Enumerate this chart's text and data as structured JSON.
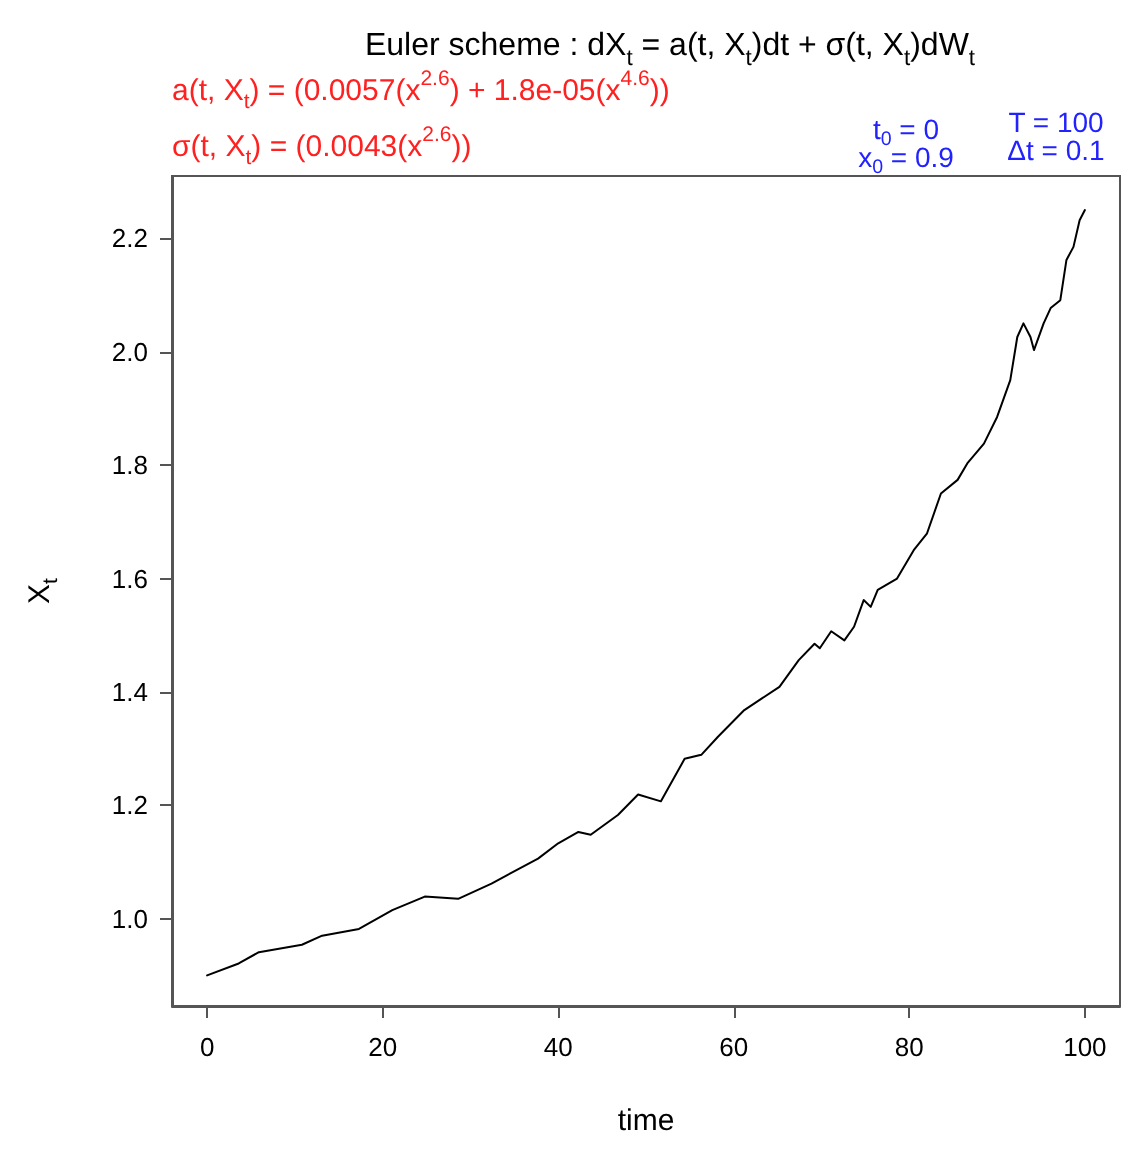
{
  "chart_data": {
    "type": "line",
    "title": "Euler scheme : dX$_{t}$ = a(t, X$_{t}$)dt + σ(t, X$_{t}$)dW$_{t}$",
    "xlabel": "time",
    "ylabel": "X$_{t}$",
    "annotations": [
      "a(t, X$_{t}$) = (0.0057(x$^{2.6}$) + 1.8e-05(x$^{4.6}$))",
      "σ(t, X$_{t}$) = (0.0043(x$^{2.6}$))",
      "t$_{0}$ = 0",
      "x$_{0}$ = 0.9",
      "T = 100",
      "Δt = 0.1"
    ],
    "series": [
      {
        "color": "#000000",
        "x": [
          0,
          3.6,
          5.9,
          10.8,
          13.1,
          17.3,
          21.1,
          24.8,
          28.6,
          32.4,
          37.7,
          40,
          42.3,
          43.7,
          46.8,
          49.1,
          51.7,
          54.4,
          56.3,
          58.2,
          61.2,
          65.2,
          67.4,
          69.2,
          69.8,
          71.1,
          72.6,
          73.7,
          74.8,
          75.6,
          76.4,
          78.6,
          80.5,
          82.0,
          83.6,
          85.5,
          86.6,
          88.5,
          90.0,
          91.5,
          92.3,
          93.0,
          93.8,
          94.2,
          95.3,
          96.1,
          97.2,
          97.9,
          98.7,
          99.4,
          100
        ],
        "values": [
          0.9,
          0.921,
          0.941,
          0.954,
          0.97,
          0.982,
          1.015,
          1.039,
          1.035,
          1.062,
          1.106,
          1.133,
          1.153,
          1.148,
          1.183,
          1.219,
          1.207,
          1.282,
          1.289,
          1.321,
          1.368,
          1.409,
          1.456,
          1.485,
          1.477,
          1.507,
          1.491,
          1.515,
          1.562,
          1.55,
          1.58,
          1.6,
          1.65,
          1.679,
          1.75,
          1.774,
          1.803,
          1.838,
          1.885,
          1.95,
          2.026,
          2.05,
          2.026,
          2.003,
          2.05,
          2.077,
          2.091,
          2.162,
          2.185,
          2.232,
          2.25
        ]
      }
    ],
    "xlim": [
      -4,
      104
    ],
    "xticks": [
      0,
      20,
      40,
      60,
      80,
      100
    ],
    "ylim": [
      0.846,
      2.31
    ],
    "yticks": [
      {
        "value": 1,
        "label": "1.0"
      },
      {
        "value": 1.2,
        "label": "1.2"
      },
      {
        "value": 1.4,
        "label": "1.4"
      },
      {
        "value": 1.6,
        "label": "1.6"
      },
      {
        "value": 1.8,
        "label": "1.8"
      },
      {
        "value": 2,
        "label": "2.0"
      },
      {
        "value": 2.2,
        "label": "2.2"
      }
    ],
    "grid": false,
    "marker": "none",
    "line_style": "solid"
  }
}
